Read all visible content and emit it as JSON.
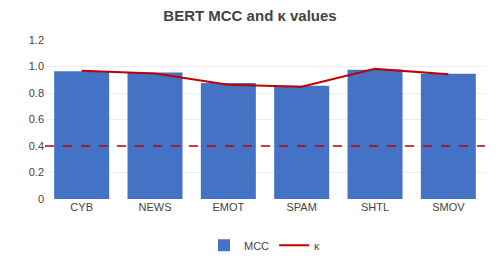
{
  "chart_data": {
    "type": "bar",
    "title": "BERT MCC and κ values",
    "categories": [
      "CYB",
      "NEWS",
      "EMOT",
      "SPAM",
      "SHTL",
      "SMOV"
    ],
    "series": [
      {
        "name": "MCC",
        "type": "bar",
        "color": "#4472C4",
        "values": [
          0.965,
          0.955,
          0.875,
          0.855,
          0.975,
          0.945
        ]
      },
      {
        "name": "κ",
        "type": "line",
        "color": "#C00000",
        "values": [
          0.968,
          0.948,
          0.862,
          0.848,
          0.982,
          0.942
        ]
      }
    ],
    "threshold": {
      "value": 0.4,
      "color": "#C00000",
      "line_style": "dashed"
    },
    "ylim": [
      0,
      1.2
    ],
    "yticks": [
      0,
      0.2,
      0.4,
      0.6,
      0.8,
      {
        "value": 1,
        "label": "1.0"
      },
      1.2
    ],
    "grid": true,
    "legend": "bottom"
  }
}
